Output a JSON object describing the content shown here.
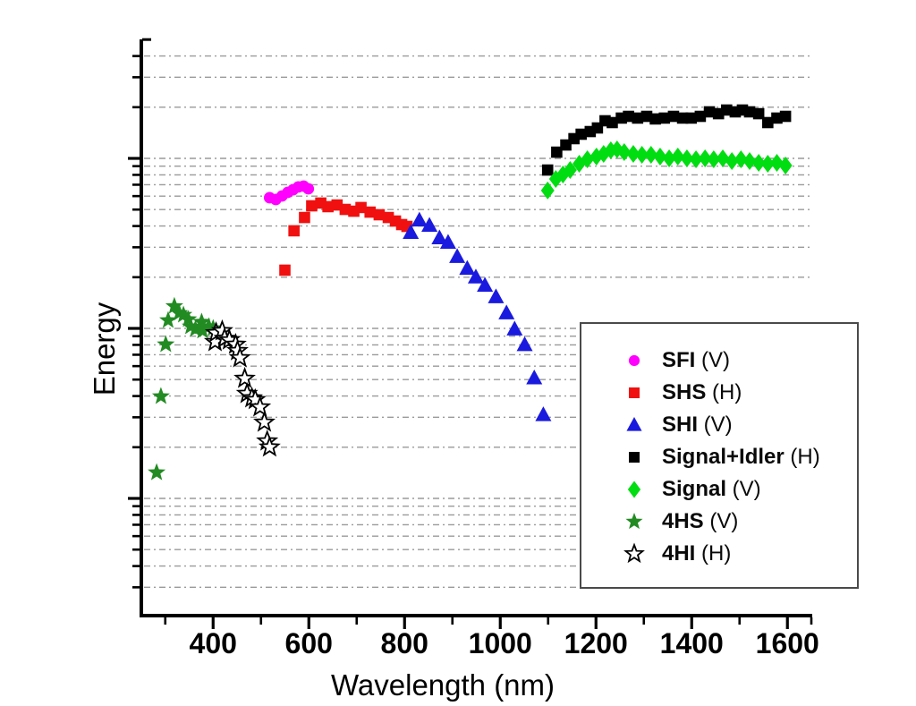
{
  "chart_data": {
    "type": "scatter",
    "title": "",
    "xlabel": "Wavelength (nm)",
    "ylabel": "Energy",
    "x_unit": "nm",
    "xlim": [
      250,
      1650
    ],
    "y_scale": "log",
    "ylim": [
      0.002,
      5
    ],
    "y_note": "relative energy, arbitrary units; log axis has no numeric tick labels",
    "grid": "horizontal dashed gray lines at every log tick",
    "grid_color": "#9a9a9a",
    "x_major_ticks": [
      400,
      600,
      800,
      1000,
      1200,
      1400,
      1600
    ],
    "x_tick_labels": [
      "400",
      "600",
      "800",
      "1000",
      "1200",
      "1400",
      "1600"
    ],
    "x_minor_ticks": [
      300,
      500,
      700,
      900,
      1100,
      1300,
      1500,
      1650
    ],
    "y_major_ticks": [
      1,
      0.1,
      0.01
    ],
    "y_minor_ticks": [
      5,
      4,
      3,
      2,
      0.9,
      0.8,
      0.7,
      0.6,
      0.5,
      0.4,
      0.3,
      0.2,
      0.09,
      0.08,
      0.07,
      0.06,
      0.05,
      0.04,
      0.03,
      0.02,
      0.009,
      0.008,
      0.007,
      0.006,
      0.005,
      0.004,
      0.003
    ],
    "gridline_values": [
      4,
      3,
      2,
      1,
      0.9,
      0.8,
      0.7,
      0.6,
      0.5,
      0.4,
      0.3,
      0.2,
      0.1,
      0.09,
      0.08,
      0.07,
      0.06,
      0.05,
      0.04,
      0.03,
      0.02,
      0.01,
      0.009,
      0.008,
      0.007,
      0.006,
      0.005,
      0.004,
      0.003
    ],
    "legend_position": "boxed, right-center of plot",
    "series": [
      {
        "name": "SFI",
        "legend_suffix": "(V)",
        "marker": "circle",
        "color": "#FF00FF",
        "edge": null,
        "points": [
          [
            518,
            0.587
          ],
          [
            531,
            0.573
          ],
          [
            544,
            0.601
          ],
          [
            556,
            0.631
          ],
          [
            567,
            0.654
          ],
          [
            578,
            0.679
          ],
          [
            589,
            0.687
          ],
          [
            599,
            0.662
          ]
        ]
      },
      {
        "name": "SHS",
        "legend_suffix": "(H)",
        "marker": "square",
        "color": "#F01010",
        "edge": null,
        "points": [
          [
            550,
            0.22
          ],
          [
            569,
            0.375
          ],
          [
            591,
            0.449
          ],
          [
            606,
            0.526
          ],
          [
            625,
            0.546
          ],
          [
            640,
            0.52
          ],
          [
            659,
            0.532
          ],
          [
            676,
            0.501
          ],
          [
            694,
            0.489
          ],
          [
            709,
            0.514
          ],
          [
            728,
            0.483
          ],
          [
            747,
            0.466
          ],
          [
            766,
            0.449
          ],
          [
            781,
            0.428
          ],
          [
            794,
            0.408
          ],
          [
            805,
            0.398
          ]
        ]
      },
      {
        "name": "SHI",
        "legend_suffix": "(V)",
        "marker": "triangle",
        "color": "#1A1ADF",
        "edge": null,
        "points": [
          [
            813,
            0.366
          ],
          [
            831,
            0.433
          ],
          [
            852,
            0.403
          ],
          [
            873,
            0.34
          ],
          [
            891,
            0.32
          ],
          [
            910,
            0.264
          ],
          [
            931,
            0.225
          ],
          [
            949,
            0.2
          ],
          [
            968,
            0.179
          ],
          [
            991,
            0.153
          ],
          [
            1013,
            0.123
          ],
          [
            1030,
            0.099
          ],
          [
            1051,
            0.08
          ],
          [
            1071,
            0.051
          ],
          [
            1090,
            0.031
          ]
        ]
      },
      {
        "name": "Signal+Idler",
        "legend_suffix": "(H)",
        "marker": "square",
        "color": "#000000",
        "edge": null,
        "points": [
          [
            1099,
            0.854
          ],
          [
            1118,
            1.088
          ],
          [
            1137,
            1.199
          ],
          [
            1154,
            1.306
          ],
          [
            1169,
            1.387
          ],
          [
            1188,
            1.438
          ],
          [
            1203,
            1.51
          ],
          [
            1219,
            1.664
          ],
          [
            1234,
            1.624
          ],
          [
            1253,
            1.726
          ],
          [
            1268,
            1.767
          ],
          [
            1287,
            1.726
          ],
          [
            1306,
            1.767
          ],
          [
            1324,
            1.706
          ],
          [
            1343,
            1.726
          ],
          [
            1362,
            1.767
          ],
          [
            1381,
            1.726
          ],
          [
            1399,
            1.726
          ],
          [
            1418,
            1.767
          ],
          [
            1437,
            1.878
          ],
          [
            1456,
            1.832
          ],
          [
            1473,
            1.925
          ],
          [
            1491,
            1.878
          ],
          [
            1506,
            1.925
          ],
          [
            1521,
            1.878
          ],
          [
            1540,
            1.832
          ],
          [
            1559,
            1.624
          ],
          [
            1578,
            1.726
          ],
          [
            1596,
            1.767
          ]
        ]
      },
      {
        "name": "Signal",
        "legend_suffix": "(V)",
        "marker": "diamond",
        "color": "#00DD11",
        "edge": null,
        "points": [
          [
            1099,
            0.647
          ],
          [
            1116,
            0.757
          ],
          [
            1131,
            0.804
          ],
          [
            1146,
            0.854
          ],
          [
            1165,
            0.93
          ],
          [
            1182,
            0.988
          ],
          [
            1201,
            1.025
          ],
          [
            1216,
            1.062
          ],
          [
            1231,
            1.115
          ],
          [
            1244,
            1.129
          ],
          [
            1259,
            1.089
          ],
          [
            1278,
            1.062
          ],
          [
            1296,
            1.05
          ],
          [
            1315,
            1.05
          ],
          [
            1334,
            1.025
          ],
          [
            1353,
            1.0
          ],
          [
            1371,
            1.025
          ],
          [
            1390,
            1.0
          ],
          [
            1409,
            0.988
          ],
          [
            1428,
            1.0
          ],
          [
            1446,
            0.988
          ],
          [
            1465,
            1.0
          ],
          [
            1484,
            0.964
          ],
          [
            1503,
            0.988
          ],
          [
            1521,
            0.964
          ],
          [
            1540,
            0.941
          ],
          [
            1559,
            0.93
          ],
          [
            1578,
            0.941
          ],
          [
            1596,
            0.908
          ]
        ]
      },
      {
        "name": "4HS",
        "legend_suffix": "(V)",
        "marker": "star",
        "color": "#228B22",
        "edge": null,
        "points": [
          [
            282,
            0.0142
          ],
          [
            291,
            0.0398
          ],
          [
            301,
            0.0804
          ],
          [
            306,
            0.1115
          ],
          [
            319,
            0.135
          ],
          [
            329,
            0.123
          ],
          [
            338,
            0.12
          ],
          [
            348,
            0.113
          ],
          [
            353,
            0.1025
          ],
          [
            363,
            0.099
          ],
          [
            376,
            0.109
          ],
          [
            378,
            0.0966
          ],
          [
            391,
            0.1025
          ],
          [
            400,
            0.1
          ]
        ]
      },
      {
        "name": "4HI",
        "legend_suffix": "(H)",
        "marker": "star-open",
        "color": "#FFFFFF",
        "edge": "#000000",
        "points": [
          [
            404,
            0.0834
          ],
          [
            406,
            0.094
          ],
          [
            419,
            0.0966
          ],
          [
            424,
            0.0872
          ],
          [
            434,
            0.0853
          ],
          [
            447,
            0.0804
          ],
          [
            451,
            0.0738
          ],
          [
            456,
            0.067
          ],
          [
            466,
            0.0507
          ],
          [
            471,
            0.0413
          ],
          [
            481,
            0.0389
          ],
          [
            488,
            0.038
          ],
          [
            498,
            0.0344
          ],
          [
            507,
            0.028
          ],
          [
            513,
            0.0217
          ],
          [
            518,
            0.02
          ]
        ]
      }
    ]
  }
}
